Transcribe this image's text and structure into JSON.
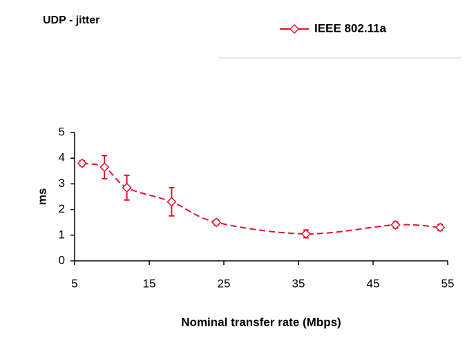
{
  "chart_data": {
    "type": "line",
    "title": "UDP - jitter",
    "xlabel": "Nominal transfer rate (Mbps)",
    "ylabel": "ms",
    "x": [
      6,
      9,
      12,
      18,
      24,
      36,
      48,
      54
    ],
    "series": [
      {
        "name": "IEEE 802.11a",
        "color": "#e8102a",
        "values": [
          3.8,
          3.65,
          2.85,
          2.3,
          1.5,
          1.05,
          1.4,
          1.3
        ],
        "errors": [
          0.1,
          0.45,
          0.48,
          0.55,
          0.1,
          0.15,
          0.12,
          0.12
        ]
      }
    ],
    "xlim": [
      5,
      55
    ],
    "xticks": [
      5,
      15,
      25,
      35,
      45,
      55
    ],
    "ylim": [
      0,
      5
    ],
    "yticks": [
      0,
      1,
      2,
      3,
      4,
      5
    ],
    "legend": "upper right"
  }
}
